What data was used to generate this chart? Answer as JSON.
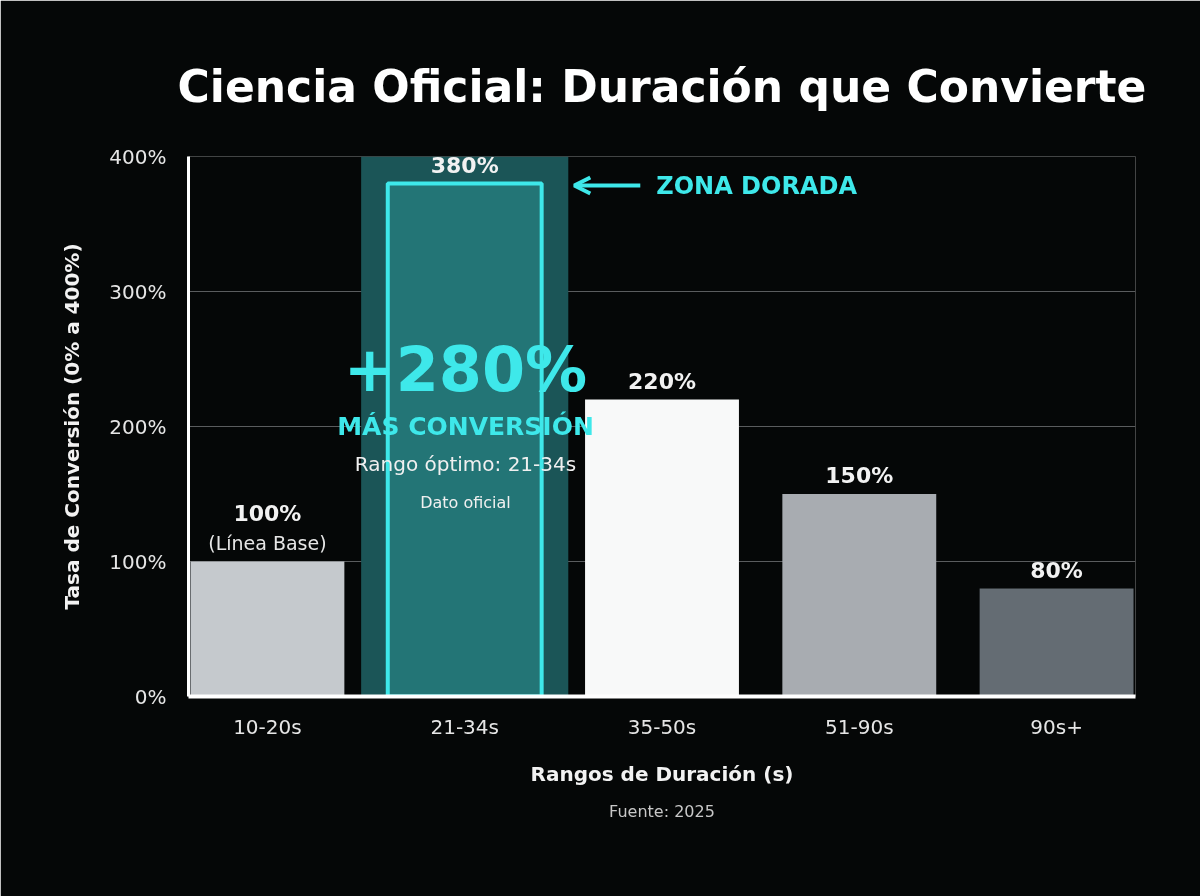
{
  "chart_data": {
    "type": "bar",
    "title": "Ciencia Oficial: Duración que Convierte",
    "xlabel": "Rangos de Duración (s)",
    "ylabel": "Tasa de Conversión (0% a 400%)",
    "categories": [
      "10-20s",
      "21-34s",
      "35-50s",
      "51-90s",
      "90s+"
    ],
    "values": [
      100,
      380,
      220,
      150,
      80
    ],
    "colors": [
      "#c5c9cd",
      "#3ee8ea",
      "#f8f9f9",
      "#a8acb1",
      "#646c73"
    ],
    "value_labels": [
      "100%",
      "380%",
      "220%",
      "150%",
      "80%"
    ],
    "ylim": [
      0,
      400
    ],
    "yticks": [
      {
        "value": 0,
        "label": "0%"
      },
      {
        "value": 100,
        "label": "100%"
      },
      {
        "value": 200,
        "label": "200%"
      },
      {
        "value": 300,
        "label": "300%"
      },
      {
        "value": 400,
        "label": "400%"
      }
    ],
    "grid": "y",
    "bands": [
      {
        "axis": "x",
        "from": "21-34s",
        "to": "21-34s",
        "label": "ZONA DORADA",
        "color": "#1b5557"
      }
    ],
    "annotations": [
      {
        "text": "(Línea Base)",
        "x": "10-20s",
        "y": 100
      },
      "+280%",
      "MÁS CONVERSIÓN",
      "Rango óptimo: 21-34s",
      "Dato oficial",
      "Fuente: 2025"
    ]
  }
}
